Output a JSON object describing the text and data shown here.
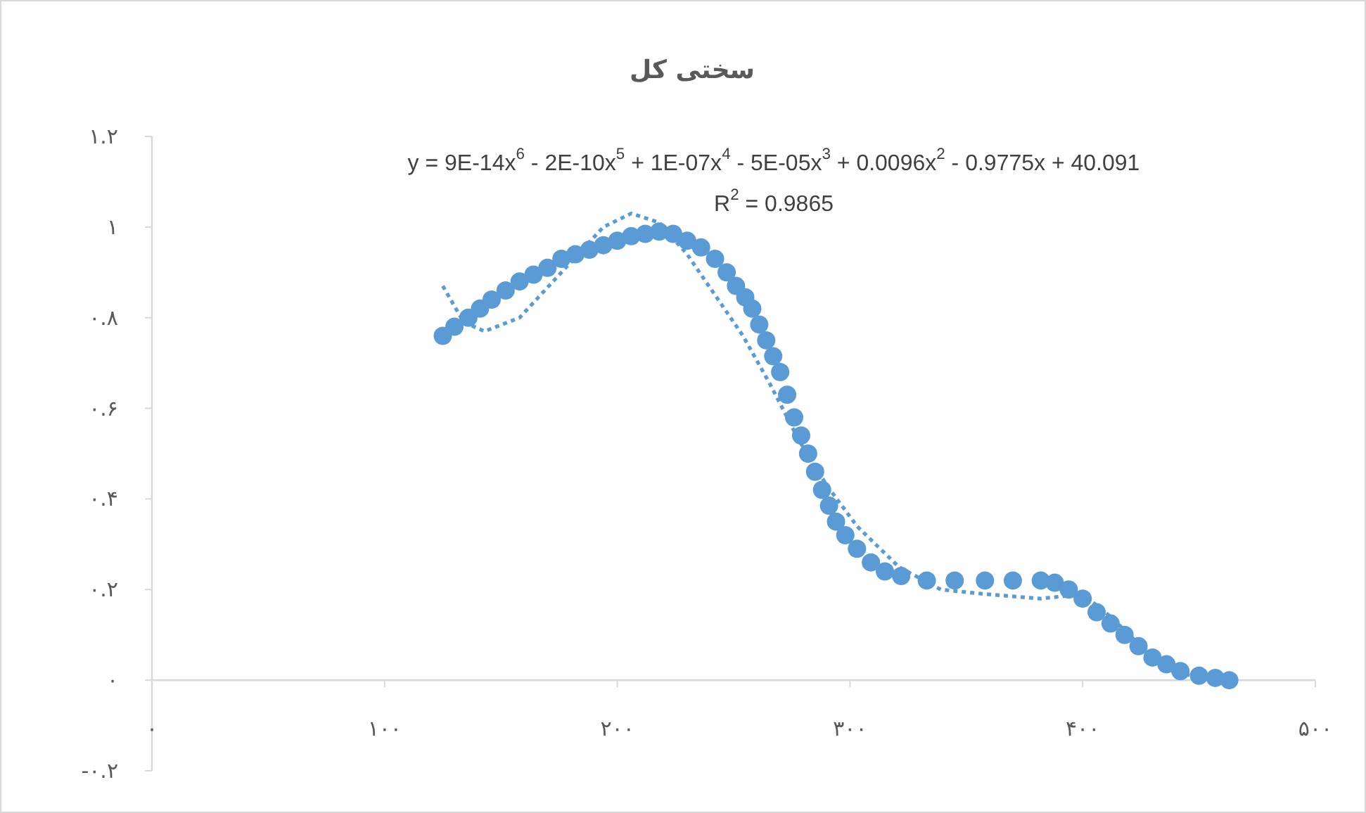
{
  "chart_data": {
    "type": "scatter",
    "title": "سختی کل",
    "annotations": [
      "y = 9E-14x$^{6}$ - 2E-10x$^{5}$ + 1E-07x$^{4}$ - 5E-05x$^{3}$ + 0.0096x$^{2}$ - 0.9775x + 40.091",
      "R$^{2}$ = 0.9865"
    ],
    "series": [
      {
        "type": "scatter",
        "color": "#5b9bd5",
        "marker": "circle",
        "x": [
          125,
          130,
          136,
          141,
          146,
          152,
          158,
          164,
          170,
          176,
          182,
          188,
          194,
          200,
          206,
          212,
          218,
          224,
          230,
          236,
          242,
          247,
          251,
          255,
          258,
          261,
          264,
          267,
          270,
          273,
          276,
          279,
          282,
          285,
          288,
          291,
          294,
          298,
          303,
          309,
          315,
          322,
          333,
          345,
          358,
          370,
          382,
          388,
          394,
          400,
          406,
          412,
          418,
          424,
          430,
          436,
          442,
          450,
          457,
          463
        ],
        "values": [
          0.76,
          0.78,
          0.8,
          0.82,
          0.84,
          0.86,
          0.88,
          0.895,
          0.91,
          0.93,
          0.94,
          0.95,
          0.96,
          0.97,
          0.98,
          0.985,
          0.99,
          0.985,
          0.97,
          0.955,
          0.93,
          0.9,
          0.87,
          0.845,
          0.82,
          0.785,
          0.75,
          0.715,
          0.68,
          0.63,
          0.58,
          0.54,
          0.5,
          0.46,
          0.42,
          0.385,
          0.35,
          0.32,
          0.29,
          0.26,
          0.24,
          0.23,
          0.22,
          0.22,
          0.22,
          0.22,
          0.22,
          0.215,
          0.2,
          0.18,
          0.15,
          0.125,
          0.1,
          0.075,
          0.05,
          0.035,
          0.02,
          0.01,
          0.005,
          0.0
        ]
      },
      {
        "type": "line",
        "color": "#5b9bd5",
        "line_style": "dotted",
        "marker": "none",
        "x": [
          125,
          134,
          143,
          158,
          176,
          194,
          206,
          218,
          230,
          242,
          254,
          266,
          278,
          290,
          303,
          321,
          339,
          358,
          382,
          400,
          412,
          424,
          439,
          454,
          463
        ],
        "values": [
          0.87,
          0.79,
          0.77,
          0.8,
          0.9,
          1.0,
          1.03,
          1.01,
          0.94,
          0.85,
          0.76,
          0.65,
          0.53,
          0.43,
          0.34,
          0.25,
          0.2,
          0.19,
          0.18,
          0.19,
          0.14,
          0.08,
          0.02,
          0.0,
          0.01
        ]
      }
    ],
    "xlim": [
      0,
      500
    ],
    "ylim": [
      -0.2,
      1.2
    ],
    "xticks": [
      {
        "value": 0,
        "label": "۰"
      },
      {
        "value": 100,
        "label": "۱۰۰"
      },
      {
        "value": 200,
        "label": "۲۰۰"
      },
      {
        "value": 300,
        "label": "۳۰۰"
      },
      {
        "value": 400,
        "label": "۴۰۰"
      },
      {
        "value": 500,
        "label": "۵۰۰"
      }
    ],
    "yticks": [
      {
        "value": -0.2,
        "label": "-۰.۲"
      },
      {
        "value": 0,
        "label": "۰"
      },
      {
        "value": 0.2,
        "label": "۰.۲"
      },
      {
        "value": 0.4,
        "label": "۰.۴"
      },
      {
        "value": 0.6,
        "label": "۰.۶"
      },
      {
        "value": 0.8,
        "label": "۰.۸"
      },
      {
        "value": 1,
        "label": "۱"
      },
      {
        "value": 1.2,
        "label": "۱.۲"
      }
    ],
    "grid": false
  }
}
